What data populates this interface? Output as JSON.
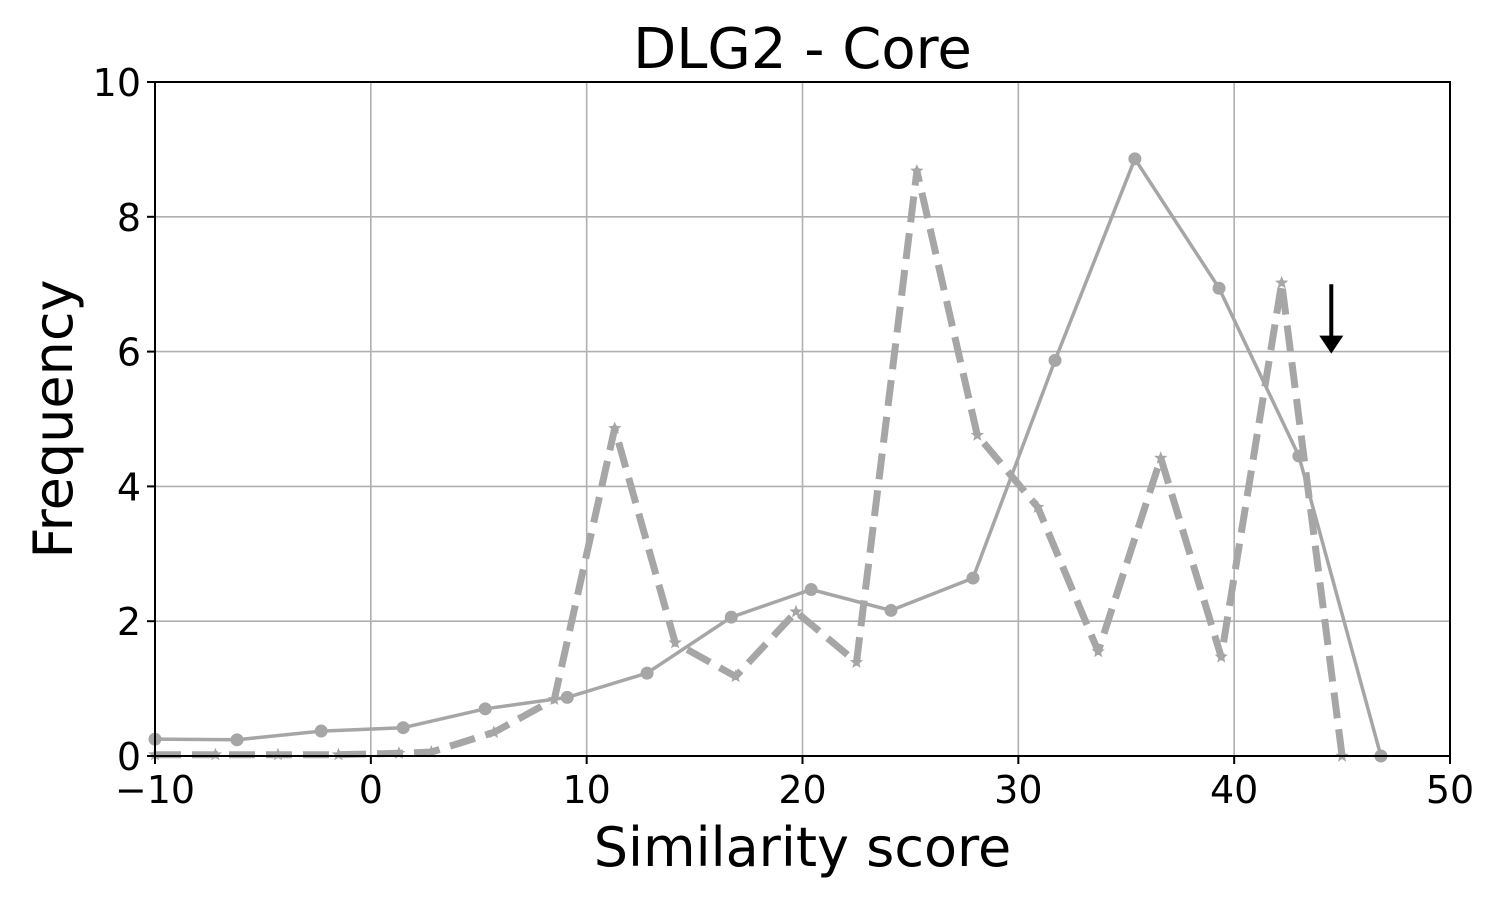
{
  "chart_data": {
    "type": "line",
    "title": "DLG2 - Core",
    "xlabel": "Similarity score",
    "ylabel": "Frequency",
    "xlim": [
      -10,
      50
    ],
    "ylim": [
      0,
      10
    ],
    "xticks": [
      -10,
      0,
      10,
      20,
      30,
      40,
      50
    ],
    "xtick_labels": [
      "−10",
      "0",
      "10",
      "20",
      "30",
      "40",
      "50"
    ],
    "yticks": [
      0,
      2,
      4,
      6,
      8,
      10
    ],
    "ytick_labels": [
      "0",
      "2",
      "4",
      "6",
      "8",
      "10"
    ],
    "grid": true,
    "series": [
      {
        "style": "solid",
        "marker": "circle",
        "color": "#a6a6a6",
        "x": [
          -10.0,
          -6.2,
          -2.3,
          1.5,
          5.3,
          9.1,
          12.8,
          16.7,
          20.4,
          24.1,
          27.9,
          31.7,
          35.4,
          39.3,
          43.0,
          46.8
        ],
        "y": [
          0.25,
          0.24,
          0.37,
          0.42,
          0.7,
          0.87,
          1.23,
          2.06,
          2.47,
          2.16,
          2.64,
          5.87,
          8.86,
          6.94,
          4.45,
          0.0
        ]
      },
      {
        "style": "dashed",
        "marker": "star",
        "color": "#a6a6a6",
        "x": [
          -10.0,
          -7.2,
          -4.3,
          -1.5,
          1.3,
          2.8,
          5.7,
          8.5,
          11.3,
          14.1,
          16.9,
          19.7,
          22.5,
          25.3,
          28.1,
          30.9,
          33.7,
          36.6,
          39.4,
          42.2,
          45.0
        ],
        "y": [
          0.02,
          0.02,
          0.02,
          0.02,
          0.04,
          0.06,
          0.35,
          0.84,
          4.86,
          1.68,
          1.18,
          2.14,
          1.39,
          8.68,
          4.76,
          3.69,
          1.55,
          4.42,
          1.47,
          7.02,
          0.0
        ]
      }
    ],
    "annotations": [
      {
        "type": "arrow",
        "direction": "down",
        "x": 44.5,
        "y_start": 7.0,
        "y_end": 6.0,
        "color": "#000000"
      }
    ]
  }
}
